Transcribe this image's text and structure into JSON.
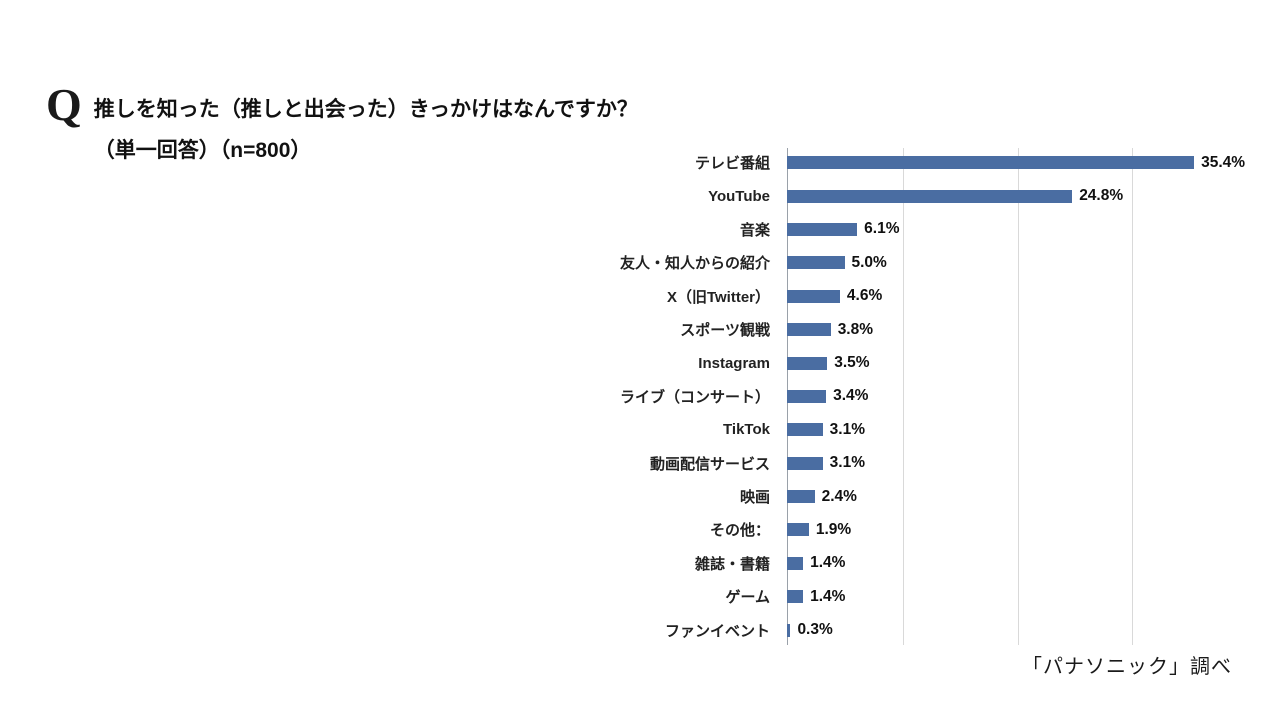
{
  "header": {
    "q_label": "Q",
    "title_line1": "推しを知った（推しと出会った）きっかけはなんですか？",
    "title_line2": "（単一回答）（n=800）"
  },
  "footer": {
    "source": "「パナソニック」調べ"
  },
  "chart_data": {
    "type": "bar",
    "orientation": "horizontal",
    "title": "推しを知った（推しと出会った）きっかけはなんですか？（単一回答）（n=800）",
    "categories": [
      "テレビ番組",
      "YouTube",
      "音楽",
      "友人・知人からの紹介",
      "X（旧Twitter）",
      "スポーツ観戦",
      "Instagram",
      "ライブ（コンサート）",
      "TikTok",
      "動画配信サービス",
      "映画",
      "その他：",
      "雑誌・書籍",
      "ゲーム",
      "ファンイベント"
    ],
    "values": [
      35.4,
      24.8,
      6.1,
      5.0,
      4.6,
      3.8,
      3.5,
      3.4,
      3.1,
      3.1,
      2.4,
      1.9,
      1.4,
      1.4,
      0.3
    ],
    "value_labels": [
      "35.4%",
      "24.8%",
      "6.1%",
      "5.0%",
      "4.6%",
      "3.8%",
      "3.5%",
      "3.4%",
      "3.1%",
      "3.1%",
      "2.4%",
      "1.9%",
      "1.4%",
      "1.4%",
      "0.3%"
    ],
    "xlabel": "",
    "ylabel": "",
    "xlim": [
      0,
      40
    ],
    "gridlines_percent": [
      10,
      20,
      30
    ],
    "grid": true,
    "legend": false,
    "bar_color": "#4a6da2",
    "gridline_color": "#d9d9d9"
  }
}
